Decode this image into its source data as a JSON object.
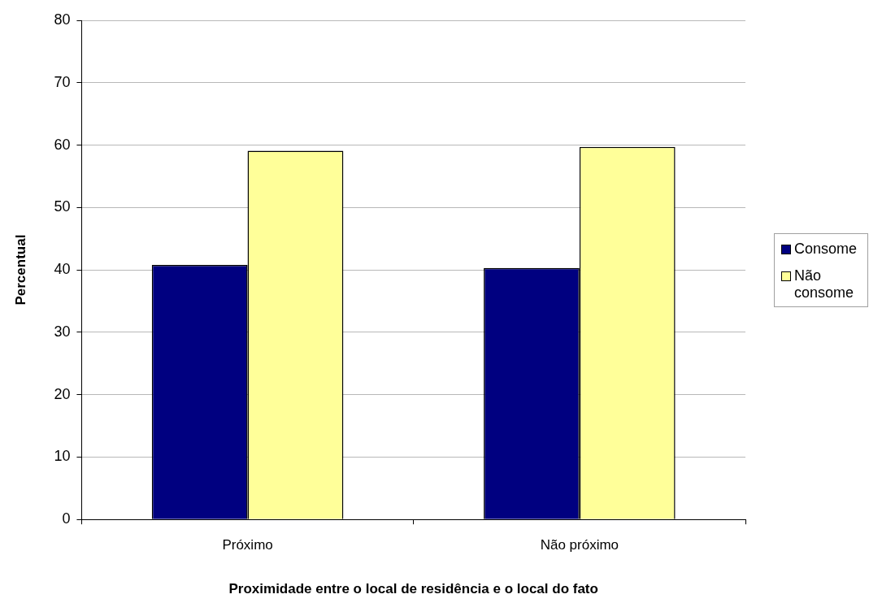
{
  "chart_data": {
    "type": "bar",
    "xlabel": "Proximidade entre o local de residência e o local do fato",
    "ylabel": "Percentual",
    "categories": [
      "Próximo",
      "Não próximo"
    ],
    "series": [
      {
        "name": "Consome",
        "color": "#000080",
        "values": [
          40.8,
          40.3
        ]
      },
      {
        "name": "Não consome",
        "color": "#ffff99",
        "values": [
          59.1,
          59.7
        ]
      }
    ],
    "ylim": [
      0,
      80
    ],
    "yticks": [
      0,
      10,
      20,
      30,
      40,
      50,
      60,
      70,
      80
    ],
    "grid": "y",
    "legend": "right"
  }
}
